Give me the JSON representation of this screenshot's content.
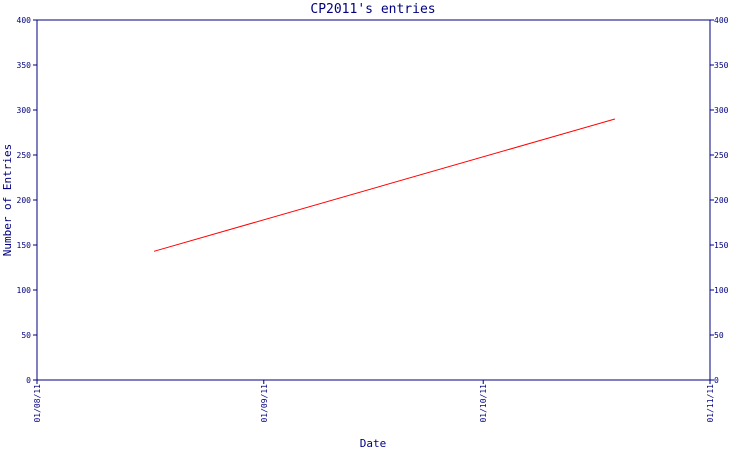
{
  "chart_data": {
    "type": "line",
    "title": "CP2011's entries",
    "xlabel": "Date",
    "ylabel": "Number of Entries",
    "x_ticks": [
      "01/08/11",
      "01/09/11",
      "01/10/11",
      "01/11/11"
    ],
    "x_range": [
      "2011-08-01",
      "2011-11-01"
    ],
    "ylim": [
      0,
      400
    ],
    "y_ticks": [
      0,
      50,
      100,
      150,
      200,
      250,
      300,
      350,
      400
    ],
    "y_axis_right": true,
    "grid": false,
    "colors": {
      "axis": "#000080",
      "line": "#ff0000"
    },
    "series": [
      {
        "color": "#ff0000",
        "points": [
          {
            "x": "2011-08-17",
            "y": 143
          },
          {
            "x": "2011-10-19",
            "y": 290
          }
        ]
      }
    ]
  }
}
